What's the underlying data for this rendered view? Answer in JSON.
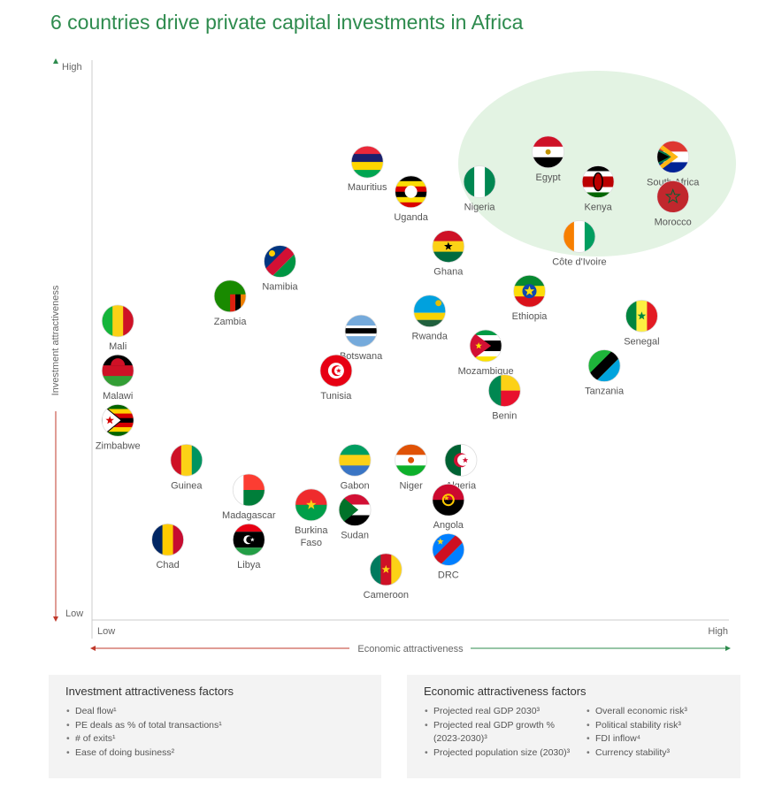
{
  "title": "6 countries drive private capital investments in Africa",
  "chart_data": {
    "type": "scatter",
    "title": "6 countries drive private capital investments in Africa",
    "xlabel": "Economic attractiveness",
    "ylabel": "Investment attractiveness",
    "x_ticks": [
      "Low",
      "High"
    ],
    "y_ticks": [
      "Low",
      "High"
    ],
    "highlight": "top-right cluster of 6 countries",
    "colors": {
      "title": "#2e8b4e",
      "highlight_fill": "#e3f3e3",
      "axis_low": "#c0392b",
      "axis_high": "#2e8b4e"
    },
    "points": [
      {
        "label": "Mauritius",
        "x": 0.44,
        "y": 0.87,
        "flag": "mauritius"
      },
      {
        "label": "Uganda",
        "x": 0.51,
        "y": 0.81,
        "flag": "uganda"
      },
      {
        "label": "Nigeria",
        "x": 0.62,
        "y": 0.83,
        "flag": "nigeria"
      },
      {
        "label": "Egypt",
        "x": 0.73,
        "y": 0.89,
        "flag": "egypt"
      },
      {
        "label": "Kenya",
        "x": 0.81,
        "y": 0.83,
        "flag": "kenya"
      },
      {
        "label": "South Africa",
        "x": 0.93,
        "y": 0.88,
        "flag": "southafrica"
      },
      {
        "label": "Morocco",
        "x": 0.93,
        "y": 0.8,
        "flag": "morocco"
      },
      {
        "label": "Côte d'Ivoire",
        "x": 0.78,
        "y": 0.72,
        "flag": "cotedivoire"
      },
      {
        "label": "Ghana",
        "x": 0.57,
        "y": 0.7,
        "flag": "ghana"
      },
      {
        "label": "Namibia",
        "x": 0.3,
        "y": 0.67,
        "flag": "namibia"
      },
      {
        "label": "Zambia",
        "x": 0.22,
        "y": 0.6,
        "flag": "zambia"
      },
      {
        "label": "Ethiopia",
        "x": 0.7,
        "y": 0.61,
        "flag": "ethiopia"
      },
      {
        "label": "Rwanda",
        "x": 0.54,
        "y": 0.57,
        "flag": "rwanda"
      },
      {
        "label": "Senegal",
        "x": 0.88,
        "y": 0.56,
        "flag": "senegal"
      },
      {
        "label": "Mali",
        "x": 0.04,
        "y": 0.55,
        "flag": "mali"
      },
      {
        "label": "Botswana",
        "x": 0.43,
        "y": 0.53,
        "flag": "botswana"
      },
      {
        "label": "Mozambique",
        "x": 0.63,
        "y": 0.5,
        "flag": "mozambique"
      },
      {
        "label": "Tanzania",
        "x": 0.82,
        "y": 0.46,
        "flag": "tanzania"
      },
      {
        "label": "Malawi",
        "x": 0.04,
        "y": 0.45,
        "flag": "malawi"
      },
      {
        "label": "Tunisia",
        "x": 0.39,
        "y": 0.45,
        "flag": "tunisia"
      },
      {
        "label": "Benin",
        "x": 0.66,
        "y": 0.41,
        "flag": "benin"
      },
      {
        "label": "Zimbabwe",
        "x": 0.04,
        "y": 0.35,
        "flag": "zimbabwe"
      },
      {
        "label": "Guinea",
        "x": 0.15,
        "y": 0.27,
        "flag": "guinea"
      },
      {
        "label": "Gabon",
        "x": 0.42,
        "y": 0.27,
        "flag": "gabon"
      },
      {
        "label": "Niger",
        "x": 0.51,
        "y": 0.27,
        "flag": "niger"
      },
      {
        "label": "Algeria",
        "x": 0.59,
        "y": 0.27,
        "flag": "algeria"
      },
      {
        "label": "Madagascar",
        "x": 0.25,
        "y": 0.21,
        "flag": "madagascar"
      },
      {
        "label": "Angola",
        "x": 0.57,
        "y": 0.19,
        "flag": "angola"
      },
      {
        "label": "Burkina Faso",
        "x": 0.35,
        "y": 0.18,
        "flag": "burkinafaso"
      },
      {
        "label": "Sudan",
        "x": 0.42,
        "y": 0.17,
        "flag": "sudan"
      },
      {
        "label": "Chad",
        "x": 0.12,
        "y": 0.11,
        "flag": "chad"
      },
      {
        "label": "Libya",
        "x": 0.25,
        "y": 0.11,
        "flag": "libya"
      },
      {
        "label": "DRC",
        "x": 0.57,
        "y": 0.09,
        "flag": "drc"
      },
      {
        "label": "Cameroon",
        "x": 0.47,
        "y": 0.05,
        "flag": "cameroon"
      }
    ]
  },
  "factors": {
    "investment": {
      "title": "Investment attractiveness factors",
      "items": [
        "Deal flow¹",
        "PE deals as % of total transactions¹",
        "# of exits¹",
        "Ease of doing business²"
      ]
    },
    "economic": {
      "title": "Economic attractiveness factors",
      "col1": [
        "Projected real GDP 2030³",
        "Projected real GDP growth % (2023-2030)³",
        "Projected population size (2030)³"
      ],
      "col2": [
        "Overall economic risk³",
        "Political stability risk³",
        "FDI inflow⁴",
        "Currency stability³"
      ]
    }
  }
}
